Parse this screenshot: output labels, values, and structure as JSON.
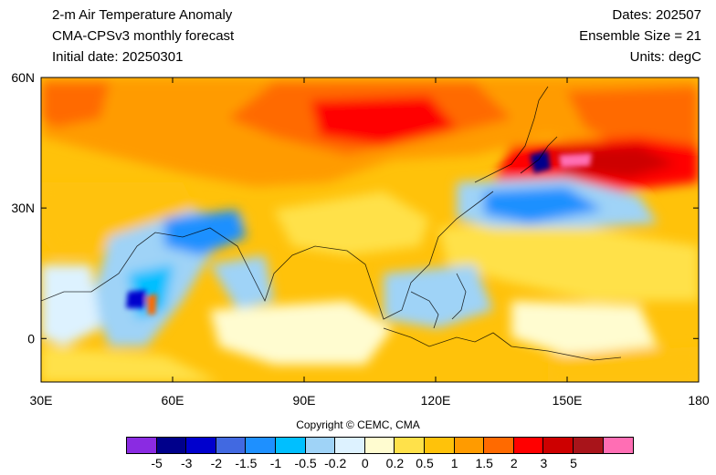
{
  "header": {
    "title": "2-m Air Temperature Anomaly",
    "model": "CMA-CPSv3 monthly forecast",
    "init": "Initial date: 20250301",
    "dates": "Dates: 202507",
    "ensemble": "Ensemble Size = 21",
    "units": "Units: degC"
  },
  "map": {
    "lon_ticks": [
      "30E",
      "60E",
      "90E",
      "120E",
      "150E",
      "180"
    ],
    "lat_ticks": [
      "60N",
      "30N",
      "0"
    ],
    "lon_range": [
      30,
      180
    ],
    "lat_range": [
      -10,
      60
    ]
  },
  "copyright": "Copyright © CEMC, CMA",
  "colorbar": {
    "colors": [
      "#8a2be2",
      "#00008b",
      "#0000cd",
      "#4169e1",
      "#1e90ff",
      "#00bfff",
      "#9fd3f7",
      "#ddf2ff",
      "#fffcd0",
      "#ffe14a",
      "#ffc20a",
      "#ff9b00",
      "#ff6a00",
      "#ff0000",
      "#cd0000",
      "#a8141a",
      "#ff6eb4"
    ],
    "labels": [
      "-5",
      "-3",
      "-2",
      "-1.5",
      "-1",
      "-0.5",
      "-0.2",
      "0",
      "0.2",
      "0.5",
      "1",
      "1.5",
      "2",
      "3",
      "5"
    ]
  }
}
